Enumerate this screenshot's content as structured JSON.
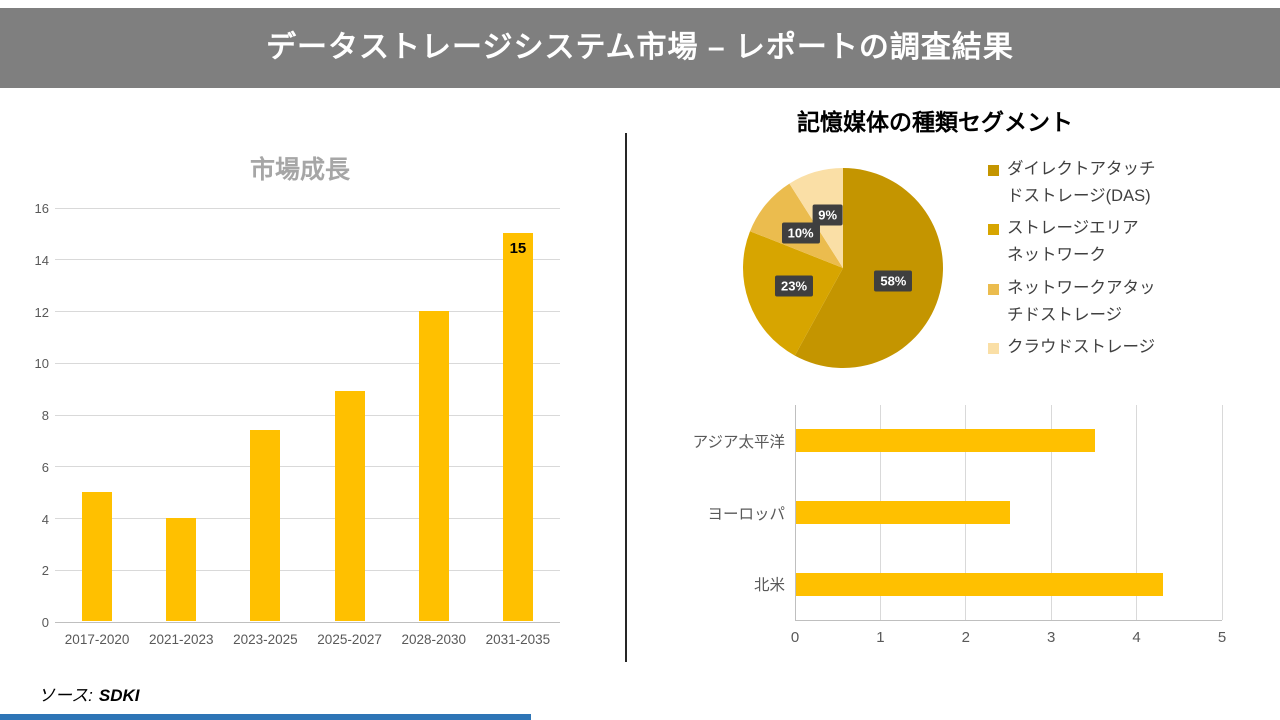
{
  "header": {
    "title": "データストレージシステム市場 – レポートの調査結果"
  },
  "footer": {
    "source_label": "ソース:",
    "source_value": "SDKI"
  },
  "colors": {
    "banner_gray": "#7f7f7f",
    "bar_gold": "#ffc000",
    "percent_label_box": "#3f3f3f",
    "accent_blue": "#2e75b6"
  },
  "chart_data": [
    {
      "id": "market-growth",
      "type": "bar",
      "title": "市場成長",
      "categories": [
        "2017-2020",
        "2021-2023",
        "2023-2025",
        "2025-2027",
        "2028-2030",
        "2031-2035"
      ],
      "values": [
        5,
        4,
        7.4,
        8.9,
        12,
        15
      ],
      "data_labels": [
        null,
        null,
        null,
        null,
        null,
        "15"
      ],
      "ylim": [
        0,
        16
      ],
      "yticks": [
        0,
        2,
        4,
        6,
        8,
        10,
        12,
        14,
        16
      ],
      "bar_color": "#ffc000",
      "grid": "horizontal",
      "legend": "none"
    },
    {
      "id": "storage-media-segments",
      "type": "pie",
      "title": "記憶媒体の種類セグメント",
      "labels": [
        "ダイレクトアタッチ\nドストレージ(DAS)",
        "ストレージエリア\nネットワーク",
        "ネットワークアタッ\nチドストレージ",
        "クラウドストレージ"
      ],
      "values": [
        58,
        23,
        10,
        9
      ],
      "percent_labels": [
        "58%",
        "23%",
        "10%",
        "9%"
      ],
      "colors": [
        "#c49500",
        "#d7a500",
        "#ebbc4e",
        "#fadfa6"
      ],
      "legend_position": "right",
      "start_angle_deg": 0,
      "direction": "clockwise"
    },
    {
      "id": "regions",
      "type": "bar-horizontal",
      "categories": [
        "アジア太平洋",
        "ヨーロッパ",
        "北米"
      ],
      "values": [
        3.5,
        2.5,
        4.3
      ],
      "xlim": [
        0,
        5
      ],
      "xticks": [
        0,
        1,
        2,
        3,
        4,
        5
      ],
      "bar_color": "#ffc000",
      "grid": "vertical",
      "legend": "none"
    }
  ]
}
